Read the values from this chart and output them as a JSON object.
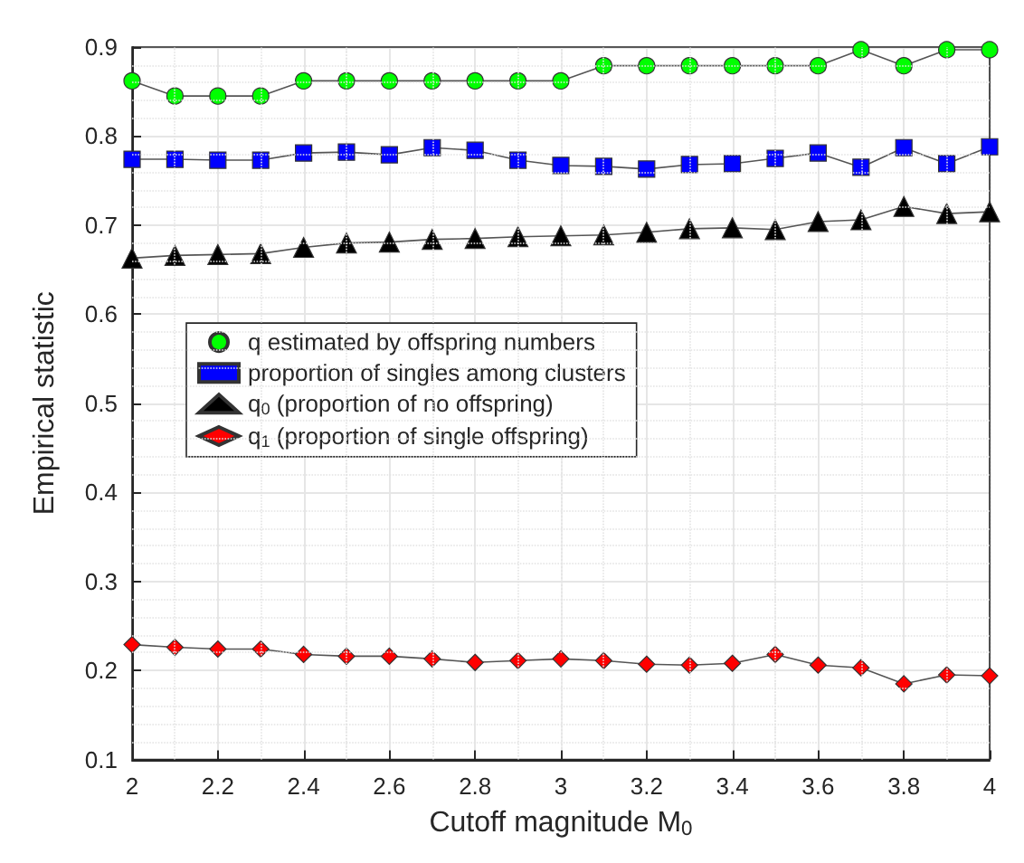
{
  "chart_data": {
    "type": "line",
    "xlabel": "Cutoff magnitude M$_{0}$",
    "ylabel": "Empirical statistic",
    "x": [
      2,
      2.1,
      2.2,
      2.3,
      2.4,
      2.5,
      2.6,
      2.7,
      2.8,
      2.9,
      3,
      3.1,
      3.2,
      3.3,
      3.4,
      3.5,
      3.6,
      3.7,
      3.8,
      3.9,
      4
    ],
    "series": [
      {
        "name": "q estimated by offspring numbers",
        "color": "#00ff00",
        "marker": "circle",
        "values": [
          0.862,
          0.845,
          0.845,
          0.845,
          0.862,
          0.862,
          0.862,
          0.862,
          0.862,
          0.862,
          0.862,
          0.879,
          0.879,
          0.879,
          0.879,
          0.879,
          0.879,
          0.897,
          0.879,
          0.897,
          0.897
        ]
      },
      {
        "name": "proportion of singles among clusters",
        "color": "#0000ff",
        "marker": "square",
        "values": [
          0.774,
          0.774,
          0.773,
          0.773,
          0.781,
          0.782,
          0.779,
          0.787,
          0.784,
          0.773,
          0.767,
          0.766,
          0.763,
          0.768,
          0.769,
          0.775,
          0.781,
          0.765,
          0.787,
          0.769,
          0.788
        ]
      },
      {
        "name": "q$_{0}$ (proportion of no offspring)",
        "color": "#000000",
        "marker": "triangle",
        "values": [
          0.663,
          0.666,
          0.667,
          0.668,
          0.675,
          0.68,
          0.681,
          0.684,
          0.685,
          0.687,
          0.688,
          0.689,
          0.692,
          0.696,
          0.697,
          0.695,
          0.704,
          0.706,
          0.721,
          0.713,
          0.715
        ]
      },
      {
        "name": "q$_{1}$ (proportion of single offspring)",
        "color": "#ff0000",
        "marker": "diamond",
        "values": [
          0.229,
          0.226,
          0.224,
          0.224,
          0.218,
          0.216,
          0.216,
          0.213,
          0.209,
          0.211,
          0.213,
          0.211,
          0.207,
          0.206,
          0.208,
          0.218,
          0.206,
          0.203,
          0.185,
          0.195,
          0.194
        ]
      }
    ],
    "xlim": [
      2,
      4
    ],
    "xticks": [
      2,
      2.2,
      2.4,
      2.6,
      2.8,
      3,
      3.2,
      3.4,
      3.6,
      3.8,
      4
    ],
    "ylim": [
      0.1,
      0.9
    ],
    "yticks": [
      0.1,
      0.2,
      0.3,
      0.4,
      0.5,
      0.6,
      0.7,
      0.8,
      0.9
    ],
    "grid": true,
    "legend": "left"
  }
}
